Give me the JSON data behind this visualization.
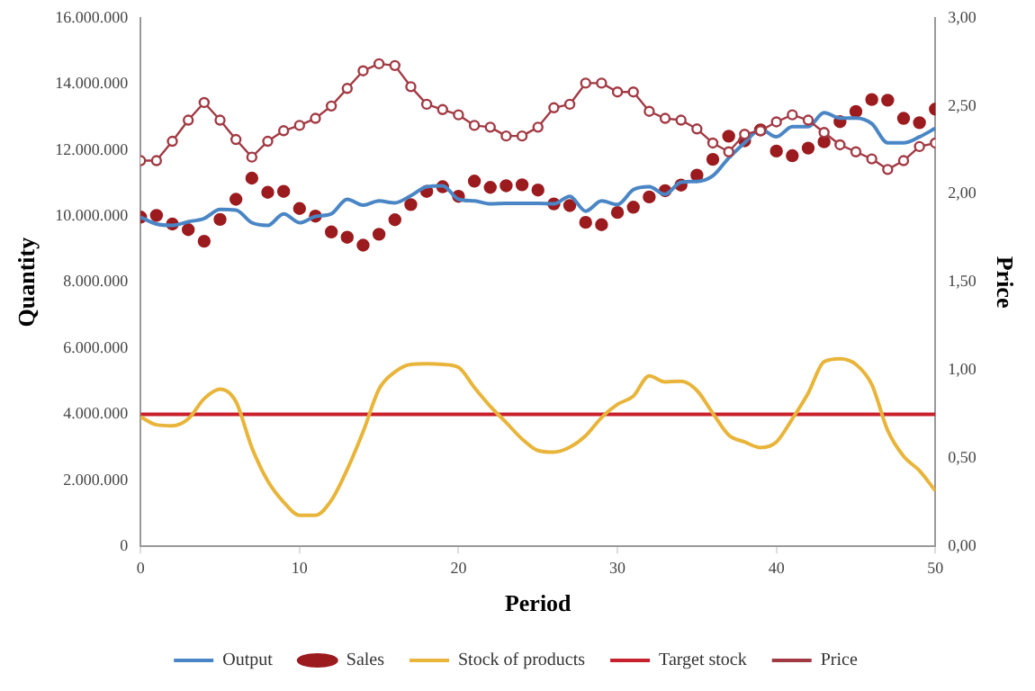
{
  "chart_data": {
    "type": "line",
    "xlabel": "Period",
    "ylabel": "Quantity",
    "y2label": "Price",
    "x": [
      0,
      1,
      2,
      3,
      4,
      5,
      6,
      7,
      8,
      9,
      10,
      11,
      12,
      13,
      14,
      15,
      16,
      17,
      18,
      19,
      20,
      21,
      22,
      23,
      24,
      25,
      26,
      27,
      28,
      29,
      30,
      31,
      32,
      33,
      34,
      35,
      36,
      37,
      38,
      39,
      40,
      41,
      42,
      43,
      44,
      45,
      46,
      47,
      48,
      49,
      50
    ],
    "xlim": [
      0,
      50
    ],
    "xticks": [
      0,
      10,
      20,
      30,
      40,
      50
    ],
    "ylim": [
      0,
      16000000
    ],
    "yticks": [
      {
        "value": 0,
        "label": "0"
      },
      {
        "value": 2000000,
        "label": "2.000.000"
      },
      {
        "value": 4000000,
        "label": "4.000.000"
      },
      {
        "value": 6000000,
        "label": "6.000.000"
      },
      {
        "value": 8000000,
        "label": "8.000.000"
      },
      {
        "value": 10000000,
        "label": "10.000.000"
      },
      {
        "value": 12000000,
        "label": "12.000.000"
      },
      {
        "value": 14000000,
        "label": "14.000.000"
      },
      {
        "value": 16000000,
        "label": "16.000.000"
      }
    ],
    "y2lim": [
      0,
      3
    ],
    "y2ticks": [
      {
        "value": 0,
        "label": "0,00"
      },
      {
        "value": 0.5,
        "label": "0,50"
      },
      {
        "value": 1,
        "label": "1,00"
      },
      {
        "value": 1.5,
        "label": "1,50"
      },
      {
        "value": 2,
        "label": "2,00"
      },
      {
        "value": 2.5,
        "label": "2,50"
      },
      {
        "value": 3,
        "label": "3,00"
      }
    ],
    "grid": false,
    "legend": "bottom",
    "series": [
      {
        "name": "Output",
        "color": "#4a86c5",
        "marker": "none",
        "values": [
          9970000,
          9760000,
          9720000,
          9830000,
          9930000,
          10200000,
          10180000,
          9800000,
          9720000,
          10070000,
          9800000,
          9990000,
          10070000,
          10510000,
          10330000,
          10460000,
          10400000,
          10620000,
          10890000,
          10920000,
          10510000,
          10460000,
          10370000,
          10390000,
          10390000,
          10390000,
          10370000,
          10600000,
          10150000,
          10460000,
          10350000,
          10800000,
          10890000,
          10660000,
          11030000,
          11050000,
          11220000,
          11760000,
          12220000,
          12630000,
          12400000,
          12710000,
          12710000,
          13130000,
          12970000,
          12970000,
          12800000,
          12220000,
          12220000,
          12400000,
          12660000
        ]
      },
      {
        "name": "Sales",
        "type": "scatter",
        "color": "#9b1b1f",
        "marker": "circle",
        "values": [
          9970000,
          10020000,
          9760000,
          9590000,
          9240000,
          9900000,
          10510000,
          11150000,
          10720000,
          10750000,
          10230000,
          10000000,
          9520000,
          9360000,
          9120000,
          9450000,
          9890000,
          10350000,
          10750000,
          10890000,
          10600000,
          11060000,
          10870000,
          10920000,
          10950000,
          10790000,
          10370000,
          10320000,
          9810000,
          9740000,
          10110000,
          10270000,
          10580000,
          10770000,
          10940000,
          11240000,
          11720000,
          12420000,
          12280000,
          12610000,
          11970000,
          11830000,
          12060000,
          12250000,
          12860000,
          13170000,
          13530000,
          13510000,
          12960000,
          12830000,
          13240000
        ]
      },
      {
        "name": "Stock of products",
        "color": "#e8b53a",
        "marker": "none",
        "values": [
          3920000,
          3680000,
          3650000,
          3860000,
          4470000,
          4760000,
          4380000,
          2990000,
          1980000,
          1340000,
          940000,
          940000,
          1390000,
          2330000,
          3470000,
          4760000,
          5280000,
          5510000,
          5530000,
          5510000,
          5420000,
          4810000,
          4240000,
          3750000,
          3250000,
          2900000,
          2850000,
          3000000,
          3350000,
          3900000,
          4300000,
          4550000,
          5160000,
          4980000,
          5000000,
          4720000,
          4030000,
          3370000,
          3160000,
          2990000,
          3160000,
          3860000,
          4640000,
          5590000,
          5680000,
          5510000,
          4900000,
          3510000,
          2730000,
          2290000,
          1680000
        ]
      },
      {
        "name": "Target stock",
        "color": "#c8202c",
        "marker": "none",
        "values": [
          4000000,
          4000000,
          4000000,
          4000000,
          4000000,
          4000000,
          4000000,
          4000000,
          4000000,
          4000000,
          4000000,
          4000000,
          4000000,
          4000000,
          4000000,
          4000000,
          4000000,
          4000000,
          4000000,
          4000000,
          4000000,
          4000000,
          4000000,
          4000000,
          4000000,
          4000000,
          4000000,
          4000000,
          4000000,
          4000000,
          4000000,
          4000000,
          4000000,
          4000000,
          4000000,
          4000000,
          4000000,
          4000000,
          4000000,
          4000000,
          4000000,
          4000000,
          4000000,
          4000000,
          4000000,
          4000000,
          4000000,
          4000000,
          4000000,
          4000000,
          4000000
        ]
      },
      {
        "name": "Price",
        "axis": "y2",
        "color": "#a23a44",
        "marker": "circle",
        "values": [
          2.19,
          2.19,
          2.3,
          2.42,
          2.52,
          2.42,
          2.31,
          2.21,
          2.3,
          2.36,
          2.39,
          2.43,
          2.5,
          2.6,
          2.7,
          2.74,
          2.73,
          2.61,
          2.51,
          2.48,
          2.45,
          2.39,
          2.38,
          2.33,
          2.33,
          2.38,
          2.49,
          2.51,
          2.63,
          2.63,
          2.58,
          2.58,
          2.47,
          2.43,
          2.42,
          2.37,
          2.29,
          2.24,
          2.34,
          2.36,
          2.41,
          2.45,
          2.42,
          2.35,
          2.28,
          2.24,
          2.2,
          2.14,
          2.19,
          2.27,
          2.29
        ]
      }
    ]
  }
}
